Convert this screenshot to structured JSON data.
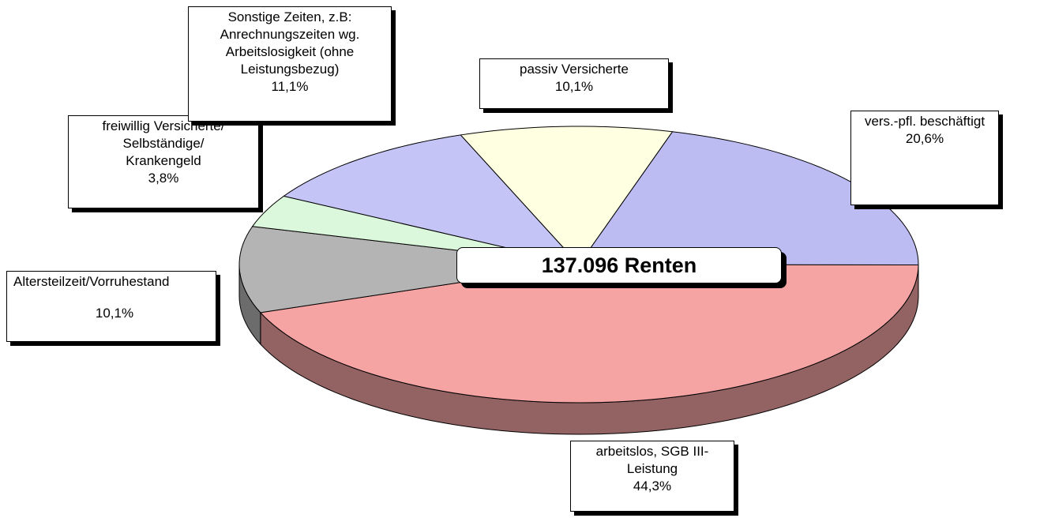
{
  "chart_data": {
    "type": "pie",
    "categories": [
      "vers.-pfl. beschäftigt",
      "arbeitslos, SGB III-\nLeistung",
      "Altersteilzeit/Vorruhestand",
      "freiwillig Versicherte/\nSelbständige/\nKrankengeld",
      "Sonstige Zeiten, z.B:\nAnrechnungszeiten wg.\nArbeitslosigkeit (ohne\nLeistungsbezug)",
      "passiv Versicherte"
    ],
    "values": [
      20.6,
      44.3,
      10.1,
      3.8,
      11.1,
      10.1
    ],
    "value_labels": [
      "20,6%",
      "44,3%",
      "10,1%",
      "3,8%",
      "11,1%",
      "10,1%"
    ],
    "colors": [
      "#bcbcf2",
      "#f5a3a3",
      "#b4b4b4",
      "#dcf8dc",
      "#c4c4f6",
      "#ffffe2"
    ],
    "annotation": "137.096 Renten"
  }
}
